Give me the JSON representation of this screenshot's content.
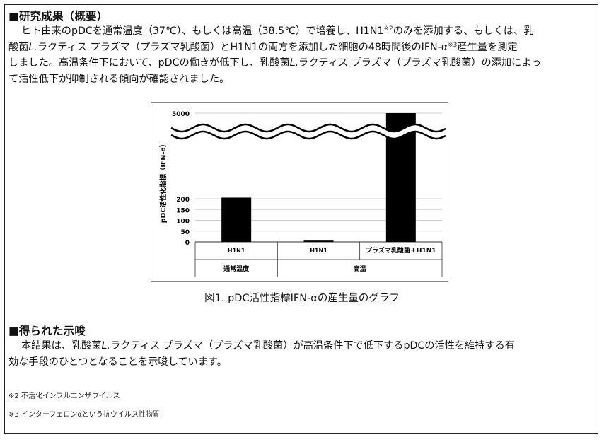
{
  "section1": {
    "heading": "■研究成果（概要）",
    "p1_a": "ヒト由来のpDCを通常温度（37℃）、もしくは高温（38.5℃）で培養し、H1N1",
    "p1_sup2": "※2",
    "p1_b": "のみを添加する、もしくは、乳",
    "p2_a": "酸菌",
    "p2_lab": "L.",
    "p2_b": "ラクティス プラズマ（プラズマ乳酸菌）とH1N1の両方を添加した細胞の48時間後のIFN-α",
    "p2_sup3": "※3",
    "p2_c": "産生量を測定",
    "p3_a": "しました。高温条件下において、pDCの働きが低下し、乳酸菌",
    "p3_lab": "L.",
    "p3_b": "ラクティス プラズマ（プラズマ乳酸菌）の添加によっ",
    "p4": "て活性低下が抑制される傾向が確認されました。"
  },
  "chart_data": {
    "type": "bar",
    "ylabel": "pDC活性化指標（IFN-α）",
    "yticks": [
      0,
      50,
      100,
      150,
      200,
      5000
    ],
    "y_break": true,
    "bar_color": "#000000",
    "categories": [
      "H1N1",
      "H1N1",
      "プラズマ乳酸菌＋H1N1"
    ],
    "groups": [
      {
        "label": "通常温度",
        "span": 1
      },
      {
        "label": "高温",
        "span": 2
      }
    ],
    "values": [
      205,
      6,
      5000
    ],
    "grid": true
  },
  "caption": "図1. pDC活性指標IFN-αの産生量のグラフ",
  "section2": {
    "heading": "■得られた示唆",
    "p1_a": "本結果は、乳酸菌",
    "p1_lab": "L.",
    "p1_b": "ラクティス プラズマ（プラズマ乳酸菌）が高温条件下で低下するpDCの活性を維持する有",
    "p2": "効な手段のひとつとなることを示唆しています。"
  },
  "notes": {
    "n2": "※2 不活化インフルエンザウイルス",
    "n3": "※3 インターフェロンαという抗ウイルス性物質"
  }
}
